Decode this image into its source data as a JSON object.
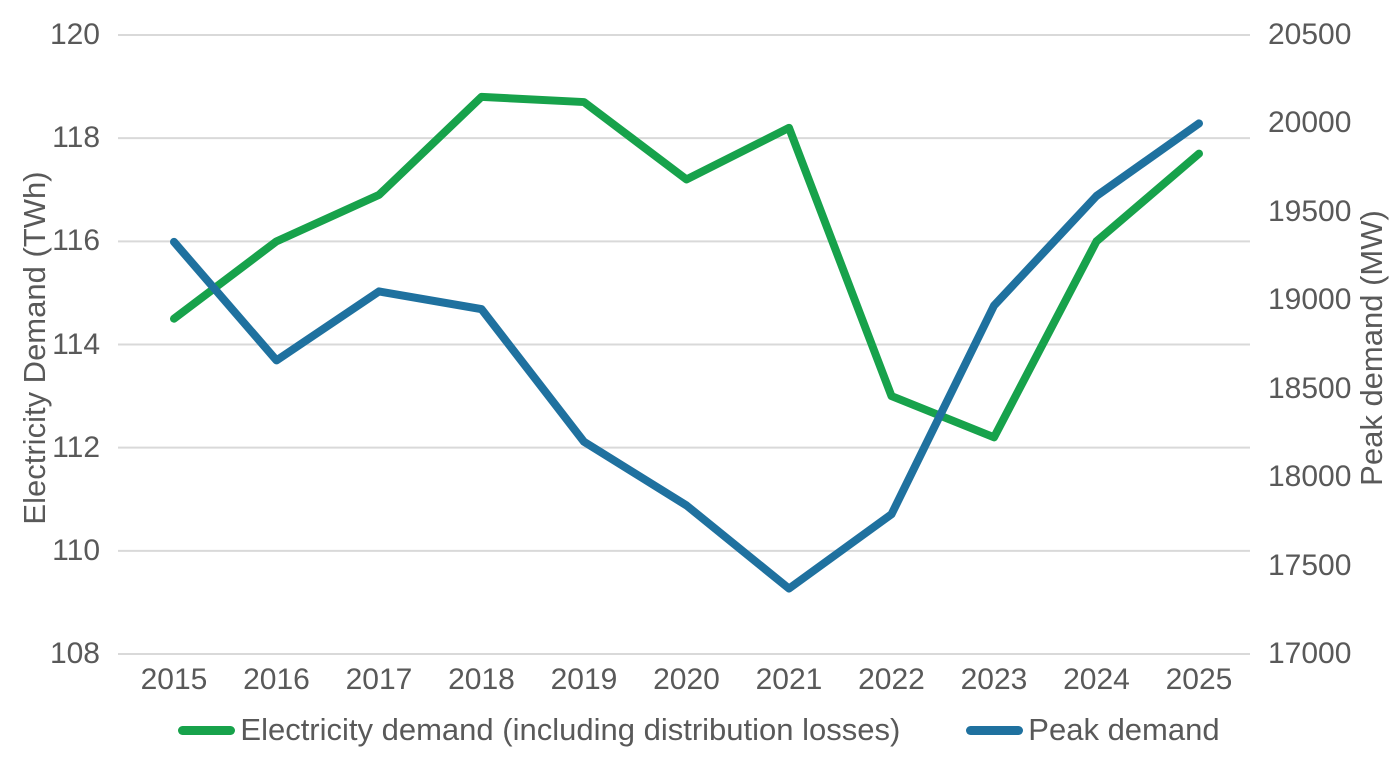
{
  "chart_data": {
    "type": "line",
    "title": "",
    "categories": [
      "2015",
      "2016",
      "2017",
      "2018",
      "2019",
      "2020",
      "2021",
      "2022",
      "2023",
      "2024",
      "2025"
    ],
    "series": [
      {
        "name": "Electricity demand (including distribution losses)",
        "axis": "left",
        "color": "#17A24B",
        "values": [
          114.5,
          116.0,
          116.9,
          118.8,
          118.7,
          117.2,
          118.2,
          113.0,
          112.2,
          116.0,
          117.7
        ]
      },
      {
        "name": "Peak demand",
        "axis": "right",
        "color": "#1F719F",
        "values": [
          19330,
          18660,
          19050,
          18950,
          18200,
          17840,
          17370,
          17790,
          18970,
          19590,
          20000
        ]
      }
    ],
    "left_axis": {
      "label": "Electricity Demand (TWh)",
      "min": 108,
      "max": 120,
      "ticks": [
        108,
        110,
        112,
        114,
        116,
        118,
        120
      ]
    },
    "right_axis": {
      "label": "Peak demand (MW)",
      "min": 17000,
      "max": 20500,
      "ticks": [
        17000,
        17500,
        18000,
        18500,
        19000,
        19500,
        20000,
        20500
      ]
    },
    "x_axis": {
      "label": ""
    },
    "grid": "horizontal",
    "legend_position": "bottom"
  },
  "styles": {
    "green": "#17A24B",
    "blue": "#1F719F",
    "text_color": "#595959",
    "grid_color": "#D9D9D9",
    "background": "#FFFFFF"
  }
}
